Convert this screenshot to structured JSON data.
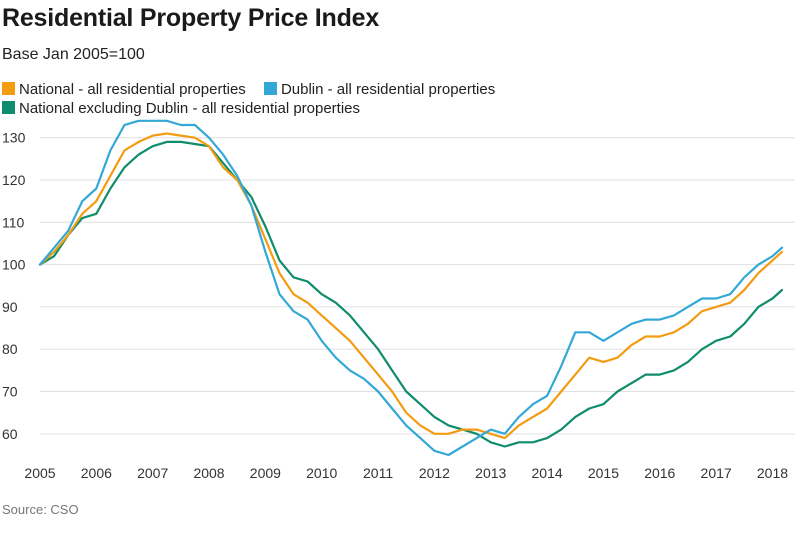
{
  "title": "Residential Property Price Index",
  "subtitle": "Base Jan 2005=100",
  "source": "Source: CSO",
  "colors": {
    "national": "#f39c12",
    "dublin": "#33a8d6",
    "ex_dublin": "#0f8c6c",
    "grid": "#e0e0e0",
    "tick": "#333333"
  },
  "chart_data": {
    "type": "line",
    "title": "Residential Property Price Index",
    "subtitle": "Base Jan 2005=100",
    "xlabel": "",
    "ylabel": "",
    "x_unit": "year (fractional)",
    "xlim": [
      2005,
      2018.4
    ],
    "ylim": [
      55,
      133
    ],
    "x_ticks": [
      2005,
      2006,
      2007,
      2008,
      2009,
      2010,
      2011,
      2012,
      2013,
      2014,
      2015,
      2016,
      2017,
      2018
    ],
    "y_ticks": [
      60,
      70,
      80,
      90,
      100,
      110,
      120,
      130
    ],
    "grid": "horizontal",
    "legend_position": "top-left",
    "series": [
      {
        "name": "National - all residential properties",
        "color": "#f39c12",
        "points": [
          [
            2005,
            100
          ],
          [
            2005.25,
            103
          ],
          [
            2005.5,
            107
          ],
          [
            2005.75,
            112
          ],
          [
            2006,
            115
          ],
          [
            2006.25,
            121
          ],
          [
            2006.5,
            127
          ],
          [
            2006.75,
            129
          ],
          [
            2007,
            130.5
          ],
          [
            2007.25,
            131
          ],
          [
            2007.5,
            130.5
          ],
          [
            2007.75,
            130
          ],
          [
            2008,
            128
          ],
          [
            2008.25,
            123
          ],
          [
            2008.5,
            120
          ],
          [
            2008.75,
            114
          ],
          [
            2009,
            106
          ],
          [
            2009.25,
            98
          ],
          [
            2009.5,
            93
          ],
          [
            2009.75,
            91
          ],
          [
            2010,
            88
          ],
          [
            2010.25,
            85
          ],
          [
            2010.5,
            82
          ],
          [
            2010.75,
            78
          ],
          [
            2011,
            74
          ],
          [
            2011.25,
            70
          ],
          [
            2011.5,
            65
          ],
          [
            2011.75,
            62
          ],
          [
            2012,
            60
          ],
          [
            2012.25,
            60
          ],
          [
            2012.5,
            61
          ],
          [
            2012.75,
            61
          ],
          [
            2013,
            60
          ],
          [
            2013.25,
            59
          ],
          [
            2013.5,
            62
          ],
          [
            2013.75,
            64
          ],
          [
            2014,
            66
          ],
          [
            2014.25,
            70
          ],
          [
            2014.5,
            74
          ],
          [
            2014.75,
            78
          ],
          [
            2015,
            77
          ],
          [
            2015.25,
            78
          ],
          [
            2015.5,
            81
          ],
          [
            2015.75,
            83
          ],
          [
            2016,
            83
          ],
          [
            2016.25,
            84
          ],
          [
            2016.5,
            86
          ],
          [
            2016.75,
            89
          ],
          [
            2017,
            90
          ],
          [
            2017.25,
            91
          ],
          [
            2017.5,
            94
          ],
          [
            2017.75,
            98
          ],
          [
            2018,
            101
          ],
          [
            2018.17,
            103
          ]
        ]
      },
      {
        "name": "Dublin - all residential properties",
        "color": "#33a8d6",
        "points": [
          [
            2005,
            100
          ],
          [
            2005.25,
            104
          ],
          [
            2005.5,
            108
          ],
          [
            2005.75,
            115
          ],
          [
            2006,
            118
          ],
          [
            2006.25,
            127
          ],
          [
            2006.5,
            133
          ],
          [
            2006.75,
            134
          ],
          [
            2007,
            134
          ],
          [
            2007.25,
            134
          ],
          [
            2007.5,
            133
          ],
          [
            2007.75,
            133
          ],
          [
            2008,
            130
          ],
          [
            2008.25,
            126
          ],
          [
            2008.5,
            121
          ],
          [
            2008.75,
            114
          ],
          [
            2009,
            103
          ],
          [
            2009.25,
            93
          ],
          [
            2009.5,
            89
          ],
          [
            2009.75,
            87
          ],
          [
            2010,
            82
          ],
          [
            2010.25,
            78
          ],
          [
            2010.5,
            75
          ],
          [
            2010.75,
            73
          ],
          [
            2011,
            70
          ],
          [
            2011.25,
            66
          ],
          [
            2011.5,
            62
          ],
          [
            2011.75,
            59
          ],
          [
            2012,
            56
          ],
          [
            2012.25,
            55
          ],
          [
            2012.5,
            57
          ],
          [
            2012.75,
            59
          ],
          [
            2013,
            61
          ],
          [
            2013.25,
            60
          ],
          [
            2013.5,
            64
          ],
          [
            2013.75,
            67
          ],
          [
            2014,
            69
          ],
          [
            2014.25,
            76
          ],
          [
            2014.5,
            84
          ],
          [
            2014.75,
            84
          ],
          [
            2015,
            82
          ],
          [
            2015.25,
            84
          ],
          [
            2015.5,
            86
          ],
          [
            2015.75,
            87
          ],
          [
            2016,
            87
          ],
          [
            2016.25,
            88
          ],
          [
            2016.5,
            90
          ],
          [
            2016.75,
            92
          ],
          [
            2017,
            92
          ],
          [
            2017.25,
            93
          ],
          [
            2017.5,
            97
          ],
          [
            2017.75,
            100
          ],
          [
            2018,
            102
          ],
          [
            2018.17,
            104
          ]
        ]
      },
      {
        "name": "National excluding Dublin - all residential properties",
        "color": "#0f8c6c",
        "points": [
          [
            2005,
            100
          ],
          [
            2005.25,
            102
          ],
          [
            2005.5,
            107
          ],
          [
            2005.75,
            111
          ],
          [
            2006,
            112
          ],
          [
            2006.25,
            118
          ],
          [
            2006.5,
            123
          ],
          [
            2006.75,
            126
          ],
          [
            2007,
            128
          ],
          [
            2007.25,
            129
          ],
          [
            2007.5,
            129
          ],
          [
            2007.75,
            128.5
          ],
          [
            2008,
            128
          ],
          [
            2008.25,
            124
          ],
          [
            2008.5,
            120
          ],
          [
            2008.75,
            116
          ],
          [
            2009,
            109
          ],
          [
            2009.25,
            101
          ],
          [
            2009.5,
            97
          ],
          [
            2009.75,
            96
          ],
          [
            2010,
            93
          ],
          [
            2010.25,
            91
          ],
          [
            2010.5,
            88
          ],
          [
            2010.75,
            84
          ],
          [
            2011,
            80
          ],
          [
            2011.25,
            75
          ],
          [
            2011.5,
            70
          ],
          [
            2011.75,
            67
          ],
          [
            2012,
            64
          ],
          [
            2012.25,
            62
          ],
          [
            2012.5,
            61
          ],
          [
            2012.75,
            60
          ],
          [
            2013,
            58
          ],
          [
            2013.25,
            57
          ],
          [
            2013.5,
            58
          ],
          [
            2013.75,
            58
          ],
          [
            2014,
            59
          ],
          [
            2014.25,
            61
          ],
          [
            2014.5,
            64
          ],
          [
            2014.75,
            66
          ],
          [
            2015,
            67
          ],
          [
            2015.25,
            70
          ],
          [
            2015.5,
            72
          ],
          [
            2015.75,
            74
          ],
          [
            2016,
            74
          ],
          [
            2016.25,
            75
          ],
          [
            2016.5,
            77
          ],
          [
            2016.75,
            80
          ],
          [
            2017,
            82
          ],
          [
            2017.25,
            83
          ],
          [
            2017.5,
            86
          ],
          [
            2017.75,
            90
          ],
          [
            2018,
            92
          ],
          [
            2018.17,
            94
          ]
        ]
      }
    ]
  }
}
